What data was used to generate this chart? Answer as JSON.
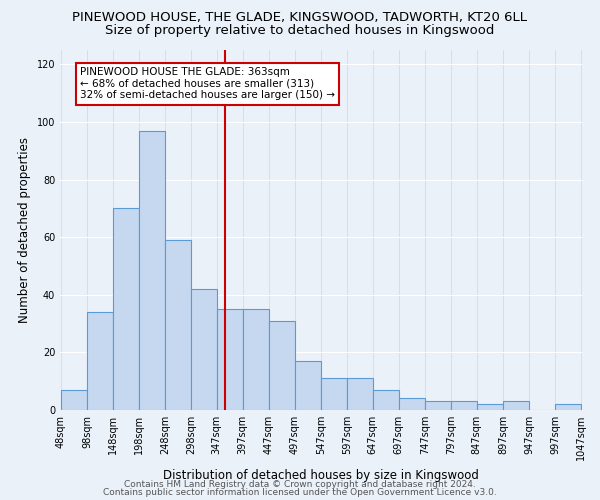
{
  "title": "PINEWOOD HOUSE, THE GLADE, KINGSWOOD, TADWORTH, KT20 6LL",
  "subtitle": "Size of property relative to detached houses in Kingswood",
  "xlabel": "Distribution of detached houses by size in Kingswood",
  "ylabel": "Number of detached properties",
  "bar_edges": [
    48,
    98,
    148,
    198,
    248,
    298,
    347,
    397,
    447,
    497,
    547,
    597,
    647,
    697,
    747,
    797,
    847,
    897,
    947,
    997,
    1047
  ],
  "bar_heights": [
    7,
    34,
    70,
    97,
    59,
    42,
    35,
    35,
    31,
    17,
    11,
    11,
    7,
    4,
    3,
    3,
    2,
    3,
    0,
    2
  ],
  "bar_color": "#c5d8f0",
  "bar_edge_color": "#5b9bd5",
  "vline_x": 363,
  "vline_color": "#cc0000",
  "annotation_text": "PINEWOOD HOUSE THE GLADE: 363sqm\n← 68% of detached houses are smaller (313)\n32% of semi-detached houses are larger (150) →",
  "annotation_box_edge": "#cc0000",
  "annotation_box_face": "#ffffff",
  "ylim": [
    0,
    125
  ],
  "yticks": [
    0,
    20,
    40,
    60,
    80,
    100,
    120
  ],
  "background_color": "#eaf1f9",
  "plot_background": "#eaf1f9",
  "footer_line1": "Contains HM Land Registry data © Crown copyright and database right 2024.",
  "footer_line2": "Contains public sector information licensed under the Open Government Licence v3.0.",
  "title_fontsize": 9.5,
  "subtitle_fontsize": 9.5,
  "tick_label_fontsize": 7,
  "axis_label_fontsize": 8.5,
  "annotation_fontsize": 7.5,
  "footer_fontsize": 6.5
}
